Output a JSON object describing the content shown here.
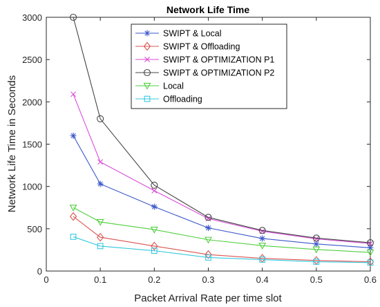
{
  "chart_data": {
    "type": "line",
    "title": "Network Life Time",
    "xlabel": "Packet Arrival Rate per time slot",
    "ylabel": "Network Life Time in Seconds",
    "xlim": [
      0,
      0.6
    ],
    "ylim": [
      0,
      3000
    ],
    "xticks": [
      0,
      0.1,
      0.2,
      0.3,
      0.4,
      0.5,
      0.6
    ],
    "xtick_labels": [
      "0",
      "0.1",
      "0.2",
      "0.3",
      "0.4",
      "0.5",
      "0.6"
    ],
    "yticks": [
      0,
      500,
      1000,
      1500,
      2000,
      2500,
      3000
    ],
    "ytick_labels": [
      "0",
      "500",
      "1000",
      "1500",
      "2000",
      "2500",
      "3000"
    ],
    "grid": false,
    "legend_position": "top-right",
    "x": [
      0.05,
      0.1,
      0.2,
      0.3,
      0.4,
      0.5,
      0.6
    ],
    "series": [
      {
        "name": "SWIPT & Local",
        "color": "#3a56c9",
        "marker": "asterisk",
        "values": [
          1600,
          1030,
          760,
          510,
          385,
          320,
          275
        ]
      },
      {
        "name": "SWIPT & Offloading",
        "color": "#d9534f",
        "marker": "diamond",
        "values": [
          645,
          400,
          295,
          195,
          150,
          125,
          110
        ]
      },
      {
        "name": "SWIPT & OPTIMIZATION P1",
        "color": "#d94ad9",
        "marker": "x",
        "values": [
          2090,
          1290,
          950,
          620,
          470,
          380,
          325
        ]
      },
      {
        "name": "SWIPT & OPTIMIZATION P2",
        "color": "#444444",
        "marker": "circle",
        "values": [
          3000,
          1800,
          1015,
          635,
          480,
          390,
          335
        ]
      },
      {
        "name": "Local",
        "color": "#4fcf3c",
        "marker": "triangle-down",
        "values": [
          750,
          580,
          490,
          370,
          300,
          255,
          220
        ]
      },
      {
        "name": "Offloading",
        "color": "#35c8e0",
        "marker": "square",
        "values": [
          405,
          295,
          240,
          160,
          135,
          110,
          100
        ]
      }
    ]
  }
}
